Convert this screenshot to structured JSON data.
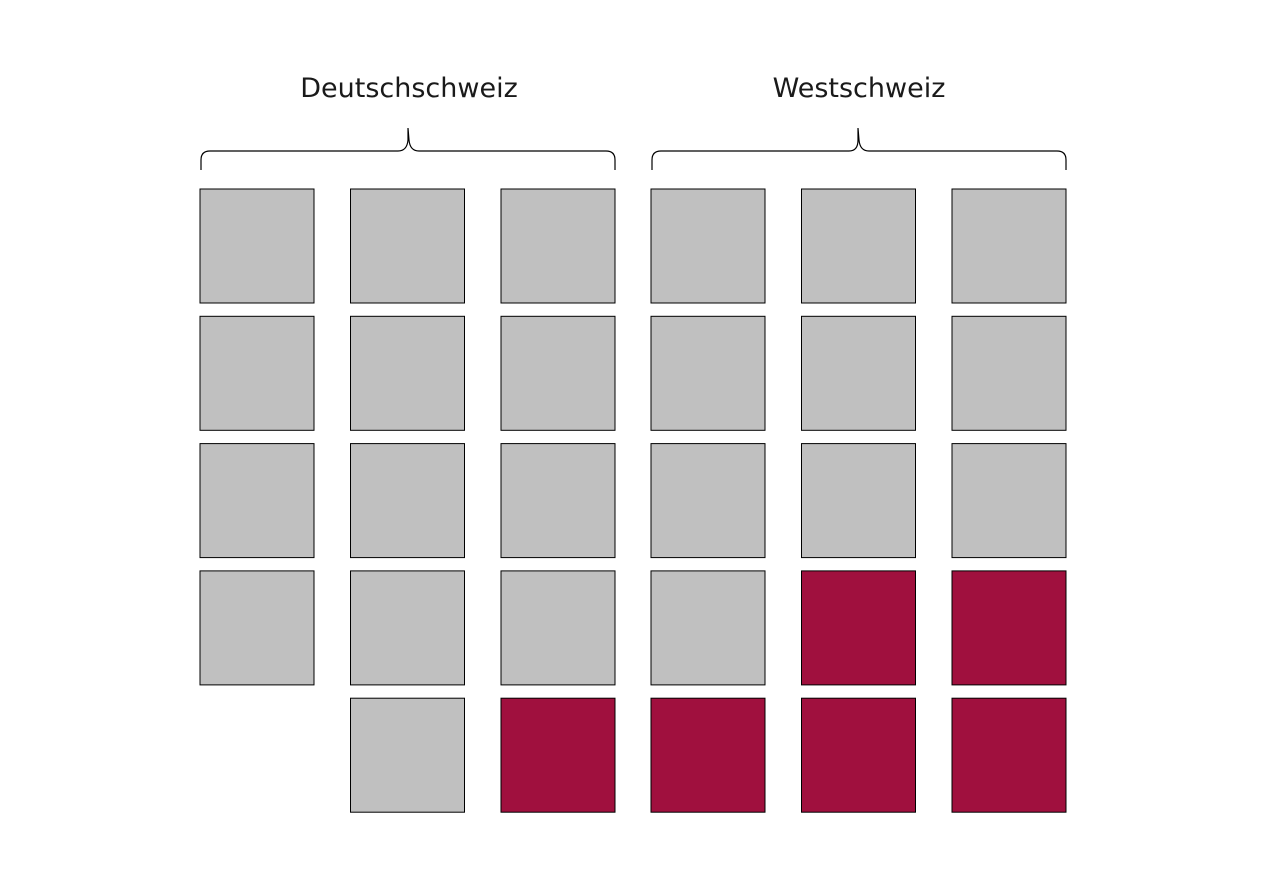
{
  "groups": [
    {
      "label": "Deutschschweiz",
      "columns": [
        [
          "grey",
          "grey",
          "grey",
          "grey"
        ],
        [
          "grey",
          "grey",
          "grey",
          "grey",
          "grey"
        ],
        [
          "grey",
          "grey",
          "grey",
          "grey",
          "red"
        ]
      ]
    },
    {
      "label": "Westschweiz",
      "columns": [
        [
          "grey",
          "grey",
          "grey",
          "grey",
          "red"
        ],
        [
          "grey",
          "grey",
          "grey",
          "red",
          "red"
        ],
        [
          "grey",
          "grey",
          "grey",
          "red",
          "red"
        ]
      ]
    }
  ],
  "colors": {
    "grey": "#c0c0c0",
    "red": "#a0103e"
  }
}
